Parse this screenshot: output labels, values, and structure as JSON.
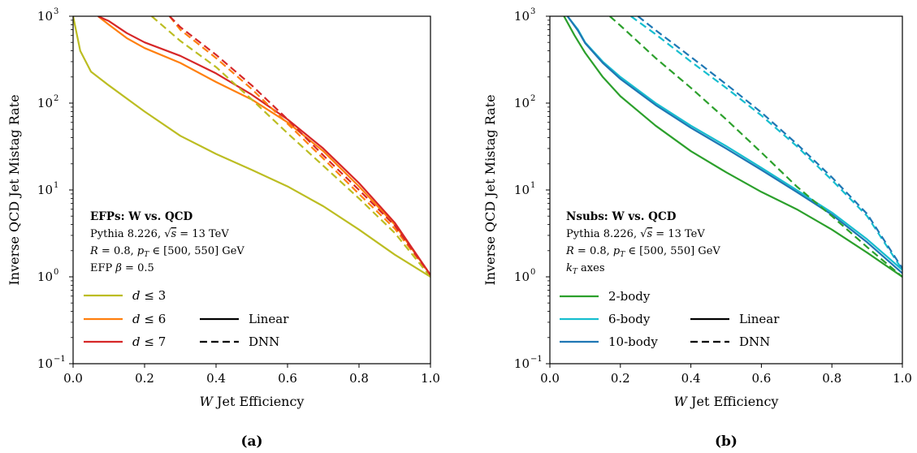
{
  "chart_data": [
    {
      "type": "line",
      "panel_label": "(a)",
      "xlabel": "W Jet Efficiency",
      "ylabel": "Inverse QCD Jet Mistag Rate",
      "xlim": [
        0.0,
        1.0
      ],
      "ylim": [
        0.1,
        1000
      ],
      "yscale": "log",
      "x_ticks": [
        "0.0",
        "0.2",
        "0.4",
        "0.6",
        "0.8",
        "1.0"
      ],
      "y_ticks": [
        {
          "base": "10",
          "exp": "−1",
          "value": 0.1
        },
        {
          "base": "10",
          "exp": "0",
          "value": 1
        },
        {
          "base": "10",
          "exp": "1",
          "value": 10
        },
        {
          "base": "10",
          "exp": "2",
          "value": 100
        },
        {
          "base": "10",
          "exp": "3",
          "value": 1000
        }
      ],
      "annotation": {
        "title": "EFPs: W vs. QCD",
        "lines": [
          "Pythia 8.226, √s = 13 TeV",
          "R = 0.8, pT ∈ [500, 550] GeV",
          "EFP β = 0.5"
        ]
      },
      "legend": {
        "location": "lower-left",
        "series_entries": [
          "d ≤ 3",
          "d ≤ 6",
          "d ≤ 7"
        ],
        "style_entries": [
          "Linear",
          "DNN"
        ]
      },
      "series": [
        {
          "name": "d ≤ 3",
          "style": "Linear",
          "color": "#bcbd22",
          "x": [
            0.0,
            0.02,
            0.05,
            0.1,
            0.2,
            0.3,
            0.4,
            0.5,
            0.6,
            0.7,
            0.8,
            0.9,
            1.0
          ],
          "y": [
            1000,
            400,
            230,
            160,
            80,
            42,
            26,
            17,
            11,
            6.5,
            3.5,
            1.8,
            1.0
          ]
        },
        {
          "name": "d ≤ 6",
          "style": "Linear",
          "color": "#ff7f0e",
          "x": [
            0.07,
            0.1,
            0.15,
            0.2,
            0.3,
            0.4,
            0.5,
            0.6,
            0.7,
            0.8,
            0.9,
            1.0
          ],
          "y": [
            1000,
            800,
            560,
            430,
            290,
            175,
            110,
            60,
            28,
            11,
            4,
            1.05
          ]
        },
        {
          "name": "d ≤ 7",
          "style": "Linear",
          "color": "#d62728",
          "x": [
            0.07,
            0.1,
            0.15,
            0.2,
            0.3,
            0.4,
            0.5,
            0.6,
            0.7,
            0.8,
            0.9,
            1.0
          ],
          "y": [
            1000,
            880,
            640,
            500,
            350,
            220,
            125,
            65,
            30,
            12,
            4.2,
            1.05
          ]
        },
        {
          "name": "d ≤ 3",
          "style": "DNN",
          "color": "#bcbd22",
          "x": [
            0.22,
            0.3,
            0.4,
            0.5,
            0.6,
            0.7,
            0.8,
            0.9,
            1.0
          ],
          "y": [
            1000,
            520,
            260,
            110,
            45,
            19,
            8,
            3.2,
            1.0
          ]
        },
        {
          "name": "d ≤ 6",
          "style": "DNN",
          "color": "#ff7f0e",
          "x": [
            0.27,
            0.3,
            0.4,
            0.5,
            0.6,
            0.7,
            0.8,
            0.9,
            1.0
          ],
          "y": [
            1000,
            700,
            330,
            145,
            58,
            23,
            9,
            3.6,
            1.05
          ]
        },
        {
          "name": "d ≤ 7",
          "style": "DNN",
          "color": "#d62728",
          "x": [
            0.27,
            0.3,
            0.4,
            0.5,
            0.6,
            0.7,
            0.8,
            0.9,
            1.0
          ],
          "y": [
            1000,
            750,
            360,
            160,
            65,
            25,
            10,
            3.9,
            1.05
          ]
        }
      ]
    },
    {
      "type": "line",
      "panel_label": "(b)",
      "xlabel": "W Jet Efficiency",
      "ylabel": "Inverse QCD Jet Mistag Rate",
      "xlim": [
        0.0,
        1.0
      ],
      "ylim": [
        0.1,
        1000
      ],
      "yscale": "log",
      "x_ticks": [
        "0.0",
        "0.2",
        "0.4",
        "0.6",
        "0.8",
        "1.0"
      ],
      "y_ticks": [
        {
          "base": "10",
          "exp": "−1",
          "value": 0.1
        },
        {
          "base": "10",
          "exp": "0",
          "value": 1
        },
        {
          "base": "10",
          "exp": "1",
          "value": 10
        },
        {
          "base": "10",
          "exp": "2",
          "value": 100
        },
        {
          "base": "10",
          "exp": "3",
          "value": 1000
        }
      ],
      "annotation": {
        "title": "Nsubs: W vs. QCD",
        "lines": [
          "Pythia 8.226, √s = 13 TeV",
          "R = 0.8, pT ∈ [500, 550] GeV",
          "kT axes"
        ]
      },
      "legend": {
        "location": "lower-left",
        "series_entries": [
          "2-body",
          "6-body",
          "10-body"
        ],
        "style_entries": [
          "Linear",
          "DNN"
        ]
      },
      "series": [
        {
          "name": "2-body",
          "style": "Linear",
          "color": "#2ca02c",
          "x": [
            0.04,
            0.07,
            0.1,
            0.15,
            0.2,
            0.3,
            0.4,
            0.5,
            0.6,
            0.7,
            0.8,
            0.9,
            1.0
          ],
          "y": [
            1000,
            600,
            380,
            200,
            120,
            55,
            28,
            16,
            9.5,
            6,
            3.5,
            1.9,
            1.0
          ]
        },
        {
          "name": "6-body",
          "style": "Linear",
          "color": "#17becf",
          "x": [
            0.05,
            0.08,
            0.1,
            0.15,
            0.2,
            0.3,
            0.4,
            0.5,
            0.6,
            0.7,
            0.8,
            0.9,
            1.0
          ],
          "y": [
            1000,
            700,
            500,
            300,
            200,
            100,
            55,
            32,
            18,
            10,
            5.5,
            2.7,
            1.2
          ]
        },
        {
          "name": "10-body",
          "style": "Linear",
          "color": "#1f77b4",
          "x": [
            0.05,
            0.08,
            0.1,
            0.15,
            0.2,
            0.3,
            0.4,
            0.5,
            0.6,
            0.7,
            0.8,
            0.9,
            1.0
          ],
          "y": [
            1000,
            680,
            490,
            290,
            190,
            95,
            52,
            30,
            17,
            9.5,
            5.2,
            2.5,
            1.1
          ]
        },
        {
          "name": "2-body",
          "style": "DNN",
          "color": "#2ca02c",
          "x": [
            0.17,
            0.2,
            0.3,
            0.4,
            0.5,
            0.6,
            0.7,
            0.8,
            0.9,
            1.0
          ],
          "y": [
            1000,
            780,
            330,
            150,
            65,
            27,
            11,
            5,
            2.2,
            1.0
          ]
        },
        {
          "name": "6-body",
          "style": "DNN",
          "color": "#17becf",
          "x": [
            0.23,
            0.3,
            0.4,
            0.5,
            0.6,
            0.7,
            0.8,
            0.9,
            1.0
          ],
          "y": [
            1000,
            620,
            300,
            150,
            72,
            32,
            13,
            5,
            1.2
          ]
        },
        {
          "name": "10-body",
          "style": "DNN",
          "color": "#1f77b4",
          "x": [
            0.25,
            0.3,
            0.4,
            0.5,
            0.6,
            0.7,
            0.8,
            0.9,
            1.0
          ],
          "y": [
            1000,
            690,
            340,
            165,
            78,
            34,
            14,
            5.3,
            1.25
          ]
        }
      ]
    }
  ]
}
